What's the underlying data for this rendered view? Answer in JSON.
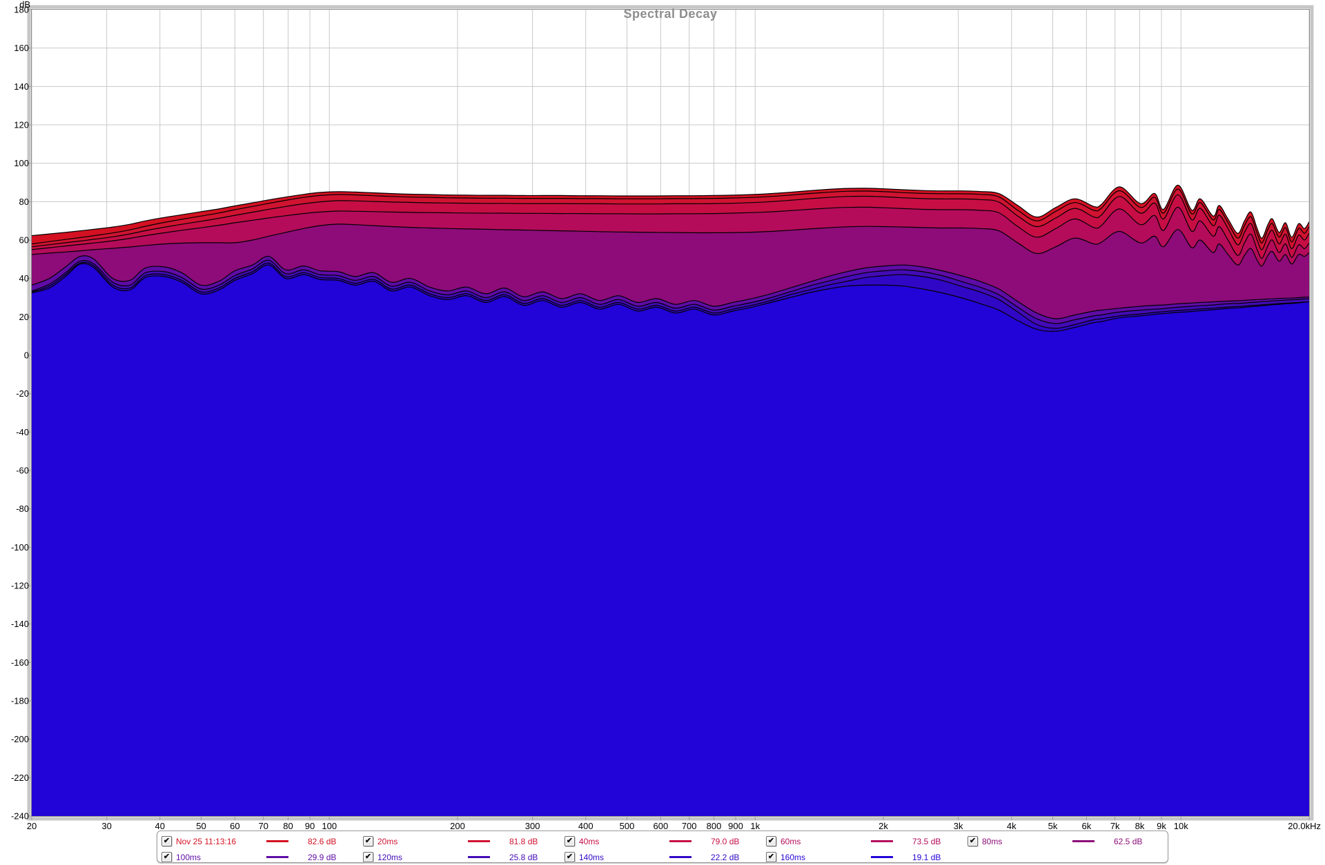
{
  "title": "Spectral Decay",
  "axis": {
    "y_unit": "dB",
    "y_max": 180,
    "y_min": -240,
    "y_step": 20,
    "x_min": 20,
    "x_max": 20000,
    "x_scale": "log",
    "x_ticks": [
      {
        "f": 20,
        "label": "20"
      },
      {
        "f": 30,
        "label": "30"
      },
      {
        "f": 40,
        "label": "40"
      },
      {
        "f": 50,
        "label": "50"
      },
      {
        "f": 60,
        "label": "60"
      },
      {
        "f": 70,
        "label": "70"
      },
      {
        "f": 80,
        "label": "80"
      },
      {
        "f": 90,
        "label": "90"
      },
      {
        "f": 100,
        "label": "100"
      },
      {
        "f": 200,
        "label": "200"
      },
      {
        "f": 300,
        "label": "300"
      },
      {
        "f": 400,
        "label": "400"
      },
      {
        "f": 500,
        "label": "500"
      },
      {
        "f": 600,
        "label": "600"
      },
      {
        "f": 700,
        "label": "700"
      },
      {
        "f": 800,
        "label": "800"
      },
      {
        "f": 900,
        "label": "900"
      },
      {
        "f": 1000,
        "label": "1k"
      },
      {
        "f": 2000,
        "label": "2k"
      },
      {
        "f": 3000,
        "label": "3k"
      },
      {
        "f": 4000,
        "label": "4k"
      },
      {
        "f": 5000,
        "label": "5k"
      },
      {
        "f": 6000,
        "label": "6k"
      },
      {
        "f": 7000,
        "label": "7k"
      },
      {
        "f": 8000,
        "label": "8k"
      },
      {
        "f": 9000,
        "label": "9k"
      },
      {
        "f": 10000,
        "label": "10k"
      },
      {
        "f": 20000,
        "label": "20.0kHz"
      }
    ]
  },
  "colors": {
    "grid": "#c9c9c9",
    "frame_outer": "#c6c6c6",
    "frame_inner": "#8a8a8a",
    "tick": "#9c9c9c",
    "tick_text": "#000000",
    "title": "#8d8d8d",
    "curve_stroke": "#000000"
  },
  "chart_data": {
    "type": "area",
    "title": "Spectral Decay",
    "xlabel": "Hz",
    "ylabel": "dB",
    "x_scale": "log",
    "xlim": [
      20,
      20000
    ],
    "ylim": [
      -240,
      180
    ],
    "grid": true,
    "legend_position": "bottom",
    "x_log_hz": [
      20,
      22,
      24,
      26,
      28,
      31,
      34,
      37,
      41,
      45,
      50,
      55,
      60,
      66,
      72,
      79,
      87,
      95,
      105,
      115,
      127,
      140,
      155,
      172,
      190,
      210,
      233,
      258,
      286,
      317,
      351,
      389,
      431,
      478,
      530,
      587,
      650,
      720,
      800,
      886,
      982,
      1088,
      1206,
      1337,
      1481,
      1641,
      1819,
      2016,
      2234,
      2476,
      2744,
      3041,
      3370,
      3735,
      4139,
      4587,
      5084,
      5634,
      6244,
      6500,
      7170,
      8040,
      8670,
      9100,
      9840,
      10600,
      11100,
      11900,
      12300,
      12900,
      13600,
      14100,
      14600,
      15100,
      15500,
      16000,
      16400,
      17000,
      17600,
      18200,
      18900,
      19500,
      20000
    ],
    "series": [
      {
        "name": "Nov 25 11:13:16",
        "level": "82.6 dB",
        "color": "#d41122",
        "checked": true,
        "row": 0,
        "col": 0,
        "values": [
          62.3,
          63.2,
          64.0,
          64.8,
          65.6,
          66.8,
          68.2,
          70.0,
          71.8,
          73.2,
          74.8,
          76.2,
          77.8,
          79.4,
          80.9,
          82.4,
          83.8,
          84.8,
          85.2,
          85.0,
          84.6,
          84.2,
          83.9,
          83.7,
          83.5,
          83.4,
          83.3,
          83.3,
          83.2,
          83.2,
          83.2,
          83.1,
          83.1,
          83.0,
          83.0,
          83.0,
          83.1,
          83.1,
          83.2,
          83.4,
          83.7,
          84.2,
          84.9,
          85.7,
          86.4,
          86.9,
          87.0,
          86.7,
          86.2,
          85.8,
          85.6,
          85.6,
          85.3,
          84.2,
          78.0,
          72.0,
          77.0,
          81.5,
          77.5,
          78.5,
          87.7,
          79.0,
          84.3,
          76.0,
          88.6,
          75.6,
          81.5,
          72.5,
          78.0,
          71.0,
          63.5,
          70.0,
          74.6,
          66.0,
          61.0,
          68.0,
          71.0,
          64.0,
          69.0,
          61.5,
          68.5,
          66.0,
          69.5
        ]
      },
      {
        "name": "20ms",
        "level": "81.8 dB",
        "color": "#d01331",
        "checked": true,
        "row": 0,
        "col": 1,
        "values": [
          58.0,
          59.2,
          60.3,
          61.3,
          62.3,
          63.7,
          65.3,
          67.2,
          69.2,
          70.8,
          72.5,
          74.1,
          75.8,
          77.5,
          79.1,
          80.7,
          82.2,
          83.2,
          83.7,
          83.5,
          83.1,
          82.7,
          82.4,
          82.2,
          82.0,
          81.9,
          81.8,
          81.8,
          81.7,
          81.7,
          81.7,
          81.6,
          81.6,
          81.5,
          81.5,
          81.5,
          81.6,
          81.6,
          81.7,
          81.9,
          82.2,
          82.7,
          83.4,
          84.2,
          84.9,
          85.4,
          85.5,
          85.2,
          84.7,
          84.3,
          84.1,
          84.1,
          83.8,
          82.5,
          75.5,
          70.0,
          75.0,
          79.5,
          75.5,
          76.5,
          85.7,
          77.0,
          82.3,
          74.0,
          86.6,
          73.6,
          79.5,
          70.5,
          76.0,
          69.0,
          61.0,
          67.5,
          72.1,
          63.5,
          58.5,
          65.5,
          68.5,
          61.5,
          66.5,
          59.0,
          66.0,
          63.5,
          67.0
        ]
      },
      {
        "name": "40ms",
        "level": "79.0 dB",
        "color": "#c60e45",
        "checked": true,
        "row": 0,
        "col": 2,
        "values": [
          56.5,
          57.6,
          58.6,
          59.5,
          60.4,
          61.7,
          63.2,
          64.9,
          66.7,
          68.2,
          69.8,
          71.3,
          72.9,
          74.5,
          76.0,
          77.5,
          78.9,
          79.9,
          80.5,
          80.4,
          80.1,
          79.8,
          79.6,
          79.4,
          79.3,
          79.2,
          79.1,
          79.1,
          79.0,
          79.0,
          79.0,
          78.9,
          78.9,
          78.8,
          78.8,
          78.8,
          78.9,
          78.9,
          79.0,
          79.2,
          79.5,
          80.0,
          80.7,
          81.5,
          82.2,
          82.7,
          82.8,
          82.5,
          82.0,
          81.6,
          81.4,
          81.4,
          81.1,
          79.8,
          72.5,
          67.0,
          71.5,
          76.5,
          72.0,
          73.0,
          82.7,
          74.0,
          79.3,
          71.0,
          83.6,
          70.6,
          76.5,
          67.5,
          73.0,
          66.0,
          57.5,
          64.0,
          68.6,
          60.0,
          55.0,
          62.0,
          65.0,
          58.0,
          63.0,
          55.5,
          62.5,
          60.0,
          63.5
        ]
      },
      {
        "name": "60ms",
        "level": "73.5 dB",
        "color": "#b40c5b",
        "checked": true,
        "row": 0,
        "col": 3,
        "values": [
          55.0,
          56.0,
          56.9,
          57.7,
          58.5,
          59.6,
          60.9,
          62.3,
          63.8,
          65.1,
          66.4,
          67.7,
          69.0,
          70.3,
          71.5,
          72.7,
          73.8,
          74.6,
          75.1,
          75.0,
          74.8,
          74.6,
          74.4,
          74.3,
          74.2,
          74.1,
          74.0,
          74.0,
          73.9,
          73.9,
          73.8,
          73.8,
          73.7,
          73.7,
          73.6,
          73.6,
          73.7,
          73.7,
          73.8,
          74.0,
          74.3,
          74.7,
          75.3,
          76.0,
          76.6,
          77.0,
          77.1,
          76.8,
          76.4,
          76.0,
          75.8,
          75.8,
          75.5,
          74.2,
          67.0,
          61.5,
          66.0,
          71.0,
          66.5,
          67.5,
          76.2,
          68.0,
          72.8,
          65.0,
          77.1,
          64.6,
          70.0,
          62.0,
          67.0,
          60.0,
          52.0,
          58.5,
          63.1,
          55.0,
          50.5,
          57.0,
          60.0,
          53.5,
          58.0,
          51.0,
          57.5,
          55.5,
          58.5
        ]
      },
      {
        "name": "80ms",
        "level": "62.5 dB",
        "color": "#8d0c79",
        "checked": true,
        "row": 0,
        "col": 4,
        "values": [
          52.5,
          53.2,
          53.8,
          54.4,
          55.0,
          55.7,
          56.4,
          57.2,
          58.0,
          58.4,
          58.6,
          58.6,
          58.6,
          60.0,
          62.0,
          64.0,
          66.0,
          67.5,
          68.3,
          68.0,
          67.5,
          67.0,
          66.6,
          66.3,
          66.0,
          65.8,
          65.6,
          65.4,
          65.2,
          65.0,
          64.8,
          64.6,
          64.4,
          64.2,
          64.1,
          64.0,
          63.9,
          63.8,
          63.8,
          63.9,
          64.1,
          64.5,
          65.1,
          65.8,
          66.4,
          66.9,
          67.1,
          67.0,
          66.8,
          66.5,
          66.3,
          66.3,
          66.0,
          64.8,
          58.5,
          53.0,
          56.5,
          61.0,
          58.0,
          58.8,
          64.5,
          58.5,
          62.0,
          56.5,
          65.5,
          56.0,
          60.0,
          53.5,
          58.0,
          52.5,
          47.0,
          52.0,
          55.6,
          49.5,
          46.5,
          52.0,
          54.0,
          49.0,
          52.5,
          47.5,
          52.5,
          51.5,
          53.5
        ]
      },
      {
        "name": "100ms",
        "level": "29.9 dB",
        "color": "#5f0ca6",
        "checked": true,
        "row": 1,
        "col": 0,
        "values": [
          36.5,
          40.0,
          46.0,
          51.5,
          50.0,
          40.0,
          39.0,
          45.5,
          46.0,
          43.0,
          36.5,
          38.5,
          44.0,
          47.0,
          51.5,
          44.5,
          46.5,
          44.0,
          43.5,
          41.0,
          43.0,
          38.0,
          40.0,
          35.5,
          33.5,
          35.5,
          32.0,
          35.0,
          30.5,
          33.0,
          29.5,
          32.0,
          28.5,
          31.0,
          27.5,
          29.5,
          26.5,
          28.5,
          25.5,
          27.5,
          29.5,
          32.0,
          35.0,
          38.0,
          41.0,
          43.5,
          45.5,
          46.5,
          47.0,
          46.0,
          44.0,
          41.5,
          38.5,
          34.5,
          28.0,
          22.0,
          19.0,
          21.0,
          23.0,
          23.5,
          24.5,
          25.5,
          26.0,
          26.2,
          26.8,
          27.2,
          27.5,
          27.8,
          28.0,
          28.2,
          28.4,
          28.6,
          28.8,
          29.0,
          29.1,
          29.3,
          29.4,
          29.6,
          29.7,
          29.8,
          30.0,
          30.2,
          30.3
        ]
      },
      {
        "name": "120ms",
        "level": "25.8 dB",
        "color": "#430bb6",
        "checked": true,
        "row": 1,
        "col": 1,
        "values": [
          33.5,
          37.0,
          43.0,
          49.0,
          47.5,
          38.0,
          36.5,
          43.0,
          43.5,
          40.5,
          34.5,
          36.5,
          41.5,
          45.0,
          49.5,
          42.5,
          44.5,
          42.0,
          41.5,
          39.0,
          41.0,
          36.0,
          38.0,
          33.5,
          31.5,
          33.5,
          30.0,
          33.0,
          28.5,
          31.0,
          27.5,
          30.0,
          26.5,
          29.0,
          25.5,
          27.5,
          24.5,
          26.5,
          23.5,
          25.5,
          27.5,
          30.0,
          33.0,
          36.0,
          38.5,
          41.0,
          43.0,
          44.0,
          44.5,
          43.5,
          41.5,
          38.5,
          35.5,
          31.5,
          25.0,
          19.0,
          16.5,
          18.5,
          20.5,
          21.0,
          22.5,
          23.5,
          24.0,
          24.3,
          25.0,
          25.5,
          25.8,
          26.2,
          26.5,
          26.8,
          27.0,
          27.2,
          27.5,
          27.7,
          27.9,
          28.1,
          28.3,
          28.5,
          28.7,
          28.9,
          29.1,
          29.3,
          29.4
        ]
      },
      {
        "name": "140ms",
        "level": "22.2 dB",
        "color": "#3107c6",
        "checked": true,
        "row": 1,
        "col": 2,
        "values": [
          33.0,
          36.0,
          42.0,
          48.0,
          46.5,
          36.5,
          35.0,
          41.5,
          42.0,
          39.0,
          33.0,
          35.0,
          40.0,
          43.5,
          48.0,
          41.0,
          43.0,
          40.5,
          40.0,
          37.5,
          39.5,
          34.5,
          36.5,
          32.0,
          30.0,
          32.0,
          28.5,
          31.5,
          27.0,
          29.5,
          26.0,
          28.5,
          25.0,
          27.5,
          24.0,
          26.0,
          23.0,
          25.0,
          22.0,
          24.0,
          26.0,
          28.5,
          31.5,
          34.0,
          36.5,
          38.5,
          40.5,
          41.5,
          42.0,
          41.0,
          39.0,
          36.0,
          33.0,
          29.0,
          22.5,
          16.0,
          14.0,
          16.0,
          18.5,
          19.0,
          20.5,
          21.5,
          22.3,
          22.7,
          23.3,
          23.8,
          24.1,
          24.5,
          24.8,
          25.1,
          25.4,
          25.6,
          25.9,
          26.1,
          26.3,
          26.5,
          26.7,
          26.9,
          27.1,
          27.3,
          27.5,
          27.7,
          27.8
        ]
      },
      {
        "name": "160ms",
        "level": "19.1 dB",
        "color": "#2203d8",
        "checked": true,
        "row": 1,
        "col": 3,
        "values": [
          32.5,
          35.0,
          41.0,
          47.5,
          45.5,
          35.5,
          34.0,
          40.5,
          41.0,
          38.0,
          32.0,
          34.0,
          39.0,
          42.5,
          47.0,
          40.0,
          42.0,
          39.5,
          39.0,
          36.5,
          38.5,
          33.5,
          35.5,
          31.0,
          29.0,
          31.0,
          27.5,
          30.5,
          26.0,
          28.5,
          25.0,
          27.5,
          24.0,
          26.5,
          23.0,
          25.0,
          22.0,
          24.0,
          21.0,
          23.0,
          25.0,
          27.5,
          30.0,
          32.5,
          34.5,
          36.0,
          36.5,
          36.5,
          36.0,
          34.5,
          32.5,
          30.0,
          27.0,
          23.5,
          18.0,
          13.5,
          12.5,
          14.5,
          17.0,
          17.5,
          19.5,
          20.5,
          21.3,
          21.7,
          22.3,
          22.8,
          23.2,
          23.7,
          24.0,
          24.4,
          24.7,
          25.0,
          25.3,
          25.5,
          25.8,
          26.0,
          26.3,
          26.5,
          26.8,
          27.0,
          27.3,
          27.6,
          27.8
        ]
      }
    ]
  }
}
